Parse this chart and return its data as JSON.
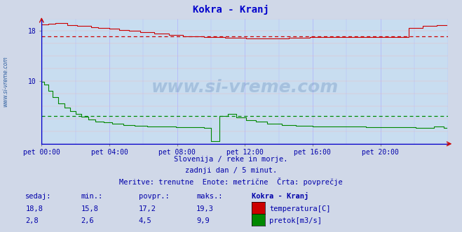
{
  "title": "Kokra - Kranj",
  "bg_color": "#d0d8e8",
  "plot_bg_color": "#c8ddf0",
  "grid_color_v": "#aaaaff",
  "grid_color_h": "#ffaaaa",
  "x_min": 0,
  "x_max": 288,
  "y_min": 0,
  "y_max": 20,
  "temp_color": "#cc0000",
  "flow_color": "#008800",
  "avg_temp": 17.2,
  "avg_flow": 4.5,
  "x_tick_labels": [
    "pet 00:00",
    "pet 04:00",
    "pet 08:00",
    "pet 12:00",
    "pet 16:00",
    "pet 20:00"
  ],
  "x_tick_positions": [
    0,
    48,
    96,
    144,
    192,
    240
  ],
  "y_ticks": [
    10,
    18
  ],
  "subtitle1": "Slovenija / reke in morje.",
  "subtitle2": "zadnji dan / 5 minut.",
  "subtitle3": "Meritve: trenutne  Enote: metrične  Črta: povprečje",
  "table_headers": [
    "sedaj:",
    "min.:",
    "povpr.:",
    "maks.:",
    "Kokra - Kranj"
  ],
  "row1": [
    "18,8",
    "15,8",
    "17,2",
    "19,3"
  ],
  "row2": [
    "2,8",
    "2,6",
    "4,5",
    "9,9"
  ],
  "legend1": "temperatura[C]",
  "legend2": "pretok[m3/s]",
  "watermark": "www.si-vreme.com",
  "side_label": "www.si-vreme.com"
}
